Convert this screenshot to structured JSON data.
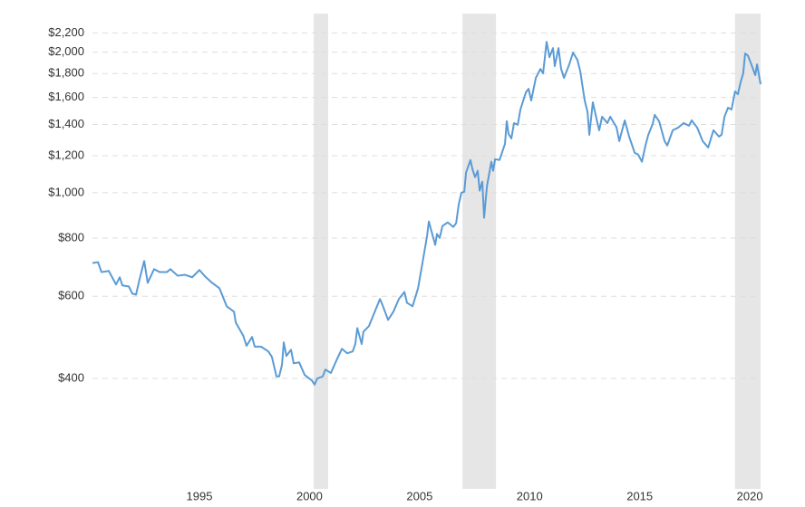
{
  "chart_data": {
    "type": "line",
    "log_y": true,
    "grid": true,
    "color": "#5b9bd5",
    "shade_color": "#e6e6e6",
    "xlim": [
      1990.14,
      2020.49
    ],
    "xticks": [
      1995,
      2000,
      2005,
      2010,
      2015,
      2020
    ],
    "ylim": [
      232,
      2420
    ],
    "yticks": [
      {
        "value": 400,
        "label": "$400"
      },
      {
        "value": 600,
        "label": "$600"
      },
      {
        "value": 800,
        "label": "$800"
      },
      {
        "value": 1000,
        "label": "$1,000"
      },
      {
        "value": 1200,
        "label": "$1,200"
      },
      {
        "value": 1400,
        "label": "$1,400"
      },
      {
        "value": 1600,
        "label": "$1,600"
      },
      {
        "value": 1800,
        "label": "$1,800"
      },
      {
        "value": 2000,
        "label": "$2,000"
      },
      {
        "value": 2200,
        "label": "$2,200"
      }
    ],
    "shaded_regions": [
      [
        2000.19,
        2000.85
      ],
      [
        2006.95,
        2008.47
      ],
      [
        2019.33,
        2020.49
      ]
    ],
    "x": [
      1990.14,
      1990.39,
      1990.55,
      1990.88,
      1991.21,
      1991.38,
      1991.5,
      1991.79,
      1991.95,
      1992.12,
      1992.28,
      1992.49,
      1992.65,
      1992.94,
      1993.19,
      1993.52,
      1993.68,
      1994.01,
      1994.34,
      1994.67,
      1995.0,
      1995.25,
      1995.58,
      1995.91,
      1996.24,
      1996.57,
      1996.65,
      1996.98,
      1997.14,
      1997.39,
      1997.51,
      1997.8,
      1998.13,
      1998.29,
      1998.5,
      1998.62,
      1998.75,
      1998.83,
      1998.95,
      1999.16,
      1999.28,
      1999.53,
      1999.78,
      2000.11,
      2000.23,
      2000.35,
      2000.6,
      2000.72,
      2000.97,
      2001.22,
      2001.47,
      2001.71,
      2001.96,
      2002.08,
      2002.17,
      2002.37,
      2002.45,
      2002.7,
      2002.95,
      2003.2,
      2003.32,
      2003.57,
      2003.81,
      2004.06,
      2004.31,
      2004.43,
      2004.68,
      2004.93,
      2005.13,
      2005.34,
      2005.42,
      2005.54,
      2005.71,
      2005.79,
      2005.91,
      2006.04,
      2006.28,
      2006.53,
      2006.66,
      2006.78,
      2006.9,
      2007.03,
      2007.11,
      2007.31,
      2007.4,
      2007.52,
      2007.64,
      2007.73,
      2007.85,
      2007.93,
      2008.06,
      2008.26,
      2008.34,
      2008.43,
      2008.63,
      2008.88,
      2008.96,
      2009.04,
      2009.17,
      2009.29,
      2009.46,
      2009.58,
      2009.83,
      2009.95,
      2010.07,
      2010.28,
      2010.49,
      2010.61,
      2010.77,
      2010.9,
      2011.06,
      2011.14,
      2011.31,
      2011.43,
      2011.56,
      2011.8,
      2011.97,
      2012.17,
      2012.3,
      2012.5,
      2012.63,
      2012.71,
      2012.87,
      2013.08,
      2013.16,
      2013.29,
      2013.53,
      2013.66,
      2013.95,
      2014.07,
      2014.32,
      2014.52,
      2014.77,
      2014.93,
      2015.1,
      2015.26,
      2015.39,
      2015.59,
      2015.68,
      2015.88,
      2016.13,
      2016.25,
      2016.5,
      2016.75,
      2016.99,
      2017.24,
      2017.36,
      2017.61,
      2017.86,
      2018.11,
      2018.35,
      2018.6,
      2018.72,
      2018.85,
      2019.01,
      2019.17,
      2019.33,
      2019.46,
      2019.58,
      2019.7,
      2019.79,
      2019.91,
      2020.04,
      2020.25,
      2020.33,
      2020.49
    ],
    "values": [
      707,
      710,
      676,
      680,
      636,
      659,
      633,
      630,
      608,
      605,
      653,
      714,
      641,
      686,
      676,
      676,
      686,
      664,
      667,
      659,
      683,
      662,
      641,
      624,
      571,
      556,
      527,
      495,
      470,
      491,
      468,
      468,
      457,
      445,
      404,
      404,
      428,
      478,
      447,
      461,
      431,
      433,
      407,
      396,
      388,
      400,
      404,
      418,
      411,
      437,
      463,
      453,
      457,
      474,
      513,
      474,
      504,
      518,
      554,
      592,
      574,
      534,
      556,
      592,
      613,
      581,
      571,
      624,
      707,
      808,
      868,
      827,
      773,
      816,
      800,
      849,
      864,
      845,
      860,
      945,
      1000,
      1005,
      1104,
      1175,
      1124,
      1080,
      1114,
      1010,
      1056,
      884,
      1033,
      1165,
      1114,
      1180,
      1175,
      1273,
      1423,
      1337,
      1307,
      1410,
      1398,
      1508,
      1641,
      1670,
      1576,
      1762,
      1842,
      1802,
      2105,
      1952,
      2041,
      1867,
      2041,
      1842,
      1762,
      1884,
      1996,
      1926,
      1818,
      1576,
      1488,
      1331,
      1562,
      1410,
      1361,
      1455,
      1410,
      1455,
      1379,
      1290,
      1429,
      1319,
      1218,
      1207,
      1165,
      1262,
      1331,
      1404,
      1468,
      1423,
      1290,
      1262,
      1361,
      1379,
      1410,
      1392,
      1429,
      1379,
      1290,
      1250,
      1361,
      1319,
      1331,
      1455,
      1521,
      1508,
      1648,
      1626,
      1723,
      1802,
      1987,
      1969,
      1900,
      1786,
      1884,
      1708
    ]
  }
}
